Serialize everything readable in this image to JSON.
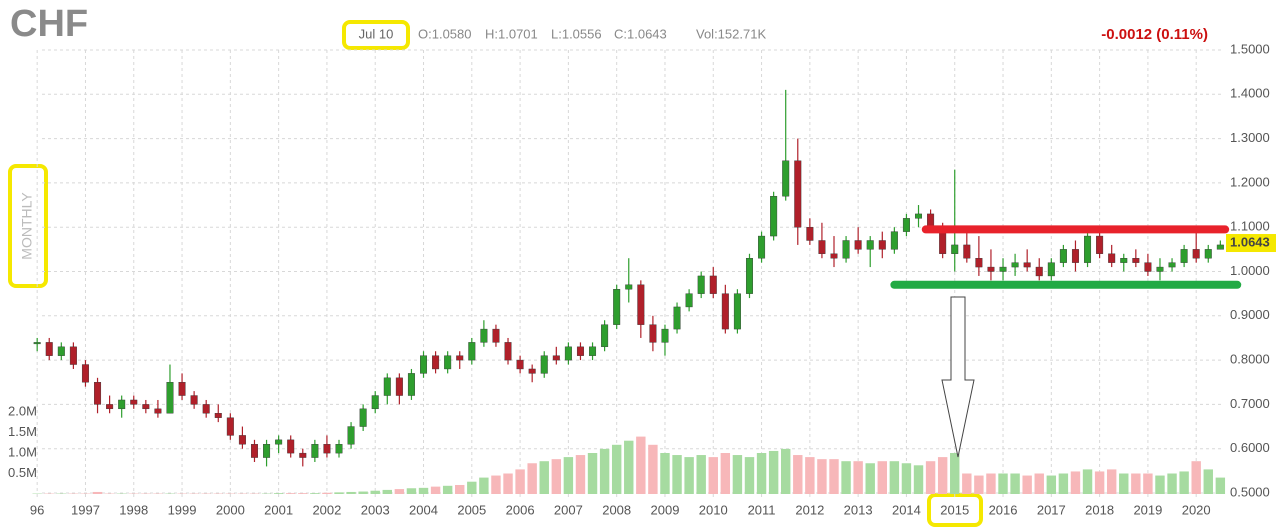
{
  "chart_data": {
    "type": "candlestick",
    "title": "CHF",
    "period": "MONTHLY",
    "header": {
      "date": "Jul 10",
      "open": "O:1.0580",
      "high": "H:1.0701",
      "low": "L:1.0556",
      "close": "C:1.0643",
      "volume": "Vol:152.71K",
      "change": "-0.0012 (0.11%)"
    },
    "last_price": 1.0643,
    "x": [
      1996,
      1996.25,
      1996.5,
      1996.75,
      1997,
      1997.25,
      1997.5,
      1997.75,
      1998,
      1998.25,
      1998.5,
      1998.75,
      1999,
      1999.25,
      1999.5,
      1999.75,
      2000,
      2000.25,
      2000.5,
      2000.75,
      2001,
      2001.25,
      2001.5,
      2001.75,
      2002,
      2002.25,
      2002.5,
      2002.75,
      2003,
      2003.25,
      2003.5,
      2003.75,
      2004,
      2004.25,
      2004.5,
      2004.75,
      2005,
      2005.25,
      2005.5,
      2005.75,
      2006,
      2006.25,
      2006.5,
      2006.75,
      2007,
      2007.25,
      2007.5,
      2007.75,
      2008,
      2008.25,
      2008.5,
      2008.75,
      2009,
      2009.25,
      2009.5,
      2009.75,
      2010,
      2010.25,
      2010.5,
      2010.75,
      2011,
      2011.25,
      2011.5,
      2011.75,
      2012,
      2012.25,
      2012.5,
      2012.75,
      2013,
      2013.25,
      2013.5,
      2013.75,
      2014,
      2014.25,
      2014.5,
      2014.75,
      2015,
      2015.25,
      2015.5,
      2015.75,
      2016,
      2016.25,
      2016.5,
      2016.75,
      2017,
      2017.25,
      2017.5,
      2017.75,
      2018,
      2018.25,
      2018.5,
      2018.75,
      2019,
      2019.25,
      2019.5,
      2019.75,
      2020,
      2020.25,
      2020.5
    ],
    "ohlc": [
      [
        0.84,
        0.85,
        0.82,
        0.84
      ],
      [
        0.84,
        0.85,
        0.8,
        0.81
      ],
      [
        0.81,
        0.84,
        0.8,
        0.83
      ],
      [
        0.83,
        0.84,
        0.78,
        0.79
      ],
      [
        0.79,
        0.8,
        0.74,
        0.75
      ],
      [
        0.75,
        0.76,
        0.68,
        0.7
      ],
      [
        0.7,
        0.72,
        0.68,
        0.69
      ],
      [
        0.69,
        0.72,
        0.67,
        0.71
      ],
      [
        0.71,
        0.72,
        0.69,
        0.7
      ],
      [
        0.7,
        0.71,
        0.68,
        0.69
      ],
      [
        0.69,
        0.71,
        0.67,
        0.68
      ],
      [
        0.68,
        0.79,
        0.68,
        0.75
      ],
      [
        0.75,
        0.77,
        0.71,
        0.72
      ],
      [
        0.72,
        0.73,
        0.69,
        0.7
      ],
      [
        0.7,
        0.71,
        0.67,
        0.68
      ],
      [
        0.68,
        0.7,
        0.66,
        0.67
      ],
      [
        0.67,
        0.68,
        0.62,
        0.63
      ],
      [
        0.63,
        0.65,
        0.6,
        0.61
      ],
      [
        0.61,
        0.62,
        0.57,
        0.58
      ],
      [
        0.58,
        0.62,
        0.56,
        0.61
      ],
      [
        0.61,
        0.63,
        0.59,
        0.62
      ],
      [
        0.62,
        0.63,
        0.58,
        0.59
      ],
      [
        0.59,
        0.6,
        0.56,
        0.58
      ],
      [
        0.58,
        0.62,
        0.57,
        0.61
      ],
      [
        0.61,
        0.63,
        0.58,
        0.59
      ],
      [
        0.59,
        0.62,
        0.58,
        0.61
      ],
      [
        0.61,
        0.66,
        0.6,
        0.65
      ],
      [
        0.65,
        0.7,
        0.64,
        0.69
      ],
      [
        0.69,
        0.73,
        0.68,
        0.72
      ],
      [
        0.72,
        0.77,
        0.7,
        0.76
      ],
      [
        0.76,
        0.77,
        0.7,
        0.72
      ],
      [
        0.72,
        0.78,
        0.71,
        0.77
      ],
      [
        0.77,
        0.82,
        0.76,
        0.81
      ],
      [
        0.81,
        0.82,
        0.77,
        0.78
      ],
      [
        0.78,
        0.82,
        0.77,
        0.81
      ],
      [
        0.81,
        0.82,
        0.78,
        0.8
      ],
      [
        0.8,
        0.85,
        0.79,
        0.84
      ],
      [
        0.84,
        0.89,
        0.83,
        0.87
      ],
      [
        0.87,
        0.88,
        0.83,
        0.84
      ],
      [
        0.84,
        0.85,
        0.79,
        0.8
      ],
      [
        0.8,
        0.81,
        0.77,
        0.78
      ],
      [
        0.78,
        0.79,
        0.75,
        0.77
      ],
      [
        0.77,
        0.82,
        0.76,
        0.81
      ],
      [
        0.81,
        0.83,
        0.79,
        0.8
      ],
      [
        0.8,
        0.84,
        0.79,
        0.83
      ],
      [
        0.83,
        0.84,
        0.8,
        0.81
      ],
      [
        0.81,
        0.84,
        0.8,
        0.83
      ],
      [
        0.83,
        0.89,
        0.82,
        0.88
      ],
      [
        0.88,
        0.97,
        0.87,
        0.96
      ],
      [
        0.96,
        1.03,
        0.93,
        0.97
      ],
      [
        0.97,
        0.98,
        0.85,
        0.88
      ],
      [
        0.88,
        0.9,
        0.82,
        0.84
      ],
      [
        0.84,
        0.88,
        0.81,
        0.87
      ],
      [
        0.87,
        0.93,
        0.86,
        0.92
      ],
      [
        0.92,
        0.96,
        0.91,
        0.95
      ],
      [
        0.95,
        1.0,
        0.94,
        0.99
      ],
      [
        0.99,
        1.01,
        0.94,
        0.95
      ],
      [
        0.95,
        0.97,
        0.86,
        0.87
      ],
      [
        0.87,
        0.96,
        0.86,
        0.95
      ],
      [
        0.95,
        1.04,
        0.94,
        1.03
      ],
      [
        1.03,
        1.09,
        1.02,
        1.08
      ],
      [
        1.08,
        1.18,
        1.07,
        1.17
      ],
      [
        1.17,
        1.41,
        1.16,
        1.25
      ],
      [
        1.25,
        1.3,
        1.06,
        1.1
      ],
      [
        1.1,
        1.12,
        1.06,
        1.07
      ],
      [
        1.07,
        1.11,
        1.03,
        1.04
      ],
      [
        1.04,
        1.08,
        1.01,
        1.03
      ],
      [
        1.03,
        1.08,
        1.02,
        1.07
      ],
      [
        1.07,
        1.1,
        1.04,
        1.05
      ],
      [
        1.05,
        1.08,
        1.01,
        1.07
      ],
      [
        1.07,
        1.09,
        1.03,
        1.05
      ],
      [
        1.05,
        1.1,
        1.04,
        1.09
      ],
      [
        1.09,
        1.13,
        1.08,
        1.12
      ],
      [
        1.12,
        1.15,
        1.1,
        1.13
      ],
      [
        1.13,
        1.14,
        1.09,
        1.1
      ],
      [
        1.1,
        1.11,
        1.03,
        1.04
      ],
      [
        1.04,
        1.23,
        1.0,
        1.06
      ],
      [
        1.06,
        1.09,
        1.02,
        1.03
      ],
      [
        1.03,
        1.08,
        0.99,
        1.01
      ],
      [
        1.01,
        1.05,
        0.98,
        1.0
      ],
      [
        1.0,
        1.03,
        0.98,
        1.01
      ],
      [
        1.01,
        1.04,
        0.99,
        1.02
      ],
      [
        1.02,
        1.05,
        1.0,
        1.01
      ],
      [
        1.01,
        1.03,
        0.98,
        0.99
      ],
      [
        0.99,
        1.03,
        0.98,
        1.02
      ],
      [
        1.02,
        1.06,
        1.01,
        1.05
      ],
      [
        1.05,
        1.07,
        1.0,
        1.02
      ],
      [
        1.02,
        1.09,
        1.01,
        1.08
      ],
      [
        1.08,
        1.09,
        1.03,
        1.04
      ],
      [
        1.04,
        1.06,
        1.01,
        1.02
      ],
      [
        1.02,
        1.04,
        1.0,
        1.03
      ],
      [
        1.03,
        1.05,
        1.01,
        1.02
      ],
      [
        1.02,
        1.04,
        0.99,
        1.0
      ],
      [
        1.0,
        1.03,
        0.98,
        1.01
      ],
      [
        1.01,
        1.03,
        1.0,
        1.02
      ],
      [
        1.02,
        1.06,
        1.01,
        1.05
      ],
      [
        1.05,
        1.09,
        1.02,
        1.03
      ],
      [
        1.03,
        1.06,
        1.02,
        1.05
      ],
      [
        1.05,
        1.07,
        1.05,
        1.06
      ]
    ],
    "volume": [
      0.01,
      0.01,
      0.01,
      0.01,
      0.01,
      0.05,
      0.01,
      0.01,
      0.01,
      0.01,
      0.01,
      0.01,
      0.01,
      0.01,
      0.01,
      0.01,
      0.01,
      0.01,
      0.01,
      0.01,
      0.02,
      0.02,
      0.02,
      0.02,
      0.03,
      0.04,
      0.05,
      0.06,
      0.08,
      0.1,
      0.12,
      0.14,
      0.15,
      0.18,
      0.2,
      0.22,
      0.3,
      0.4,
      0.45,
      0.5,
      0.6,
      0.75,
      0.8,
      0.85,
      0.9,
      0.95,
      1.0,
      1.1,
      1.2,
      1.3,
      1.4,
      1.2,
      1.0,
      0.95,
      0.9,
      0.95,
      0.9,
      1.0,
      0.95,
      0.9,
      1.0,
      1.05,
      1.1,
      0.95,
      0.9,
      0.85,
      0.85,
      0.8,
      0.8,
      0.75,
      0.8,
      0.8,
      0.75,
      0.7,
      0.8,
      0.9,
      1.0,
      0.5,
      0.45,
      0.5,
      0.5,
      0.5,
      0.45,
      0.5,
      0.45,
      0.5,
      0.55,
      0.6,
      0.55,
      0.6,
      0.5,
      0.5,
      0.5,
      0.45,
      0.5,
      0.55,
      0.8,
      0.6,
      0.4
    ],
    "up_color": "#2e9e2e",
    "down_color": "#b0202a",
    "vol_up_color": "#a6dba0",
    "vol_down_color": "#f7b7b9",
    "xlim": [
      1996.1,
      2020.7
    ],
    "xticks": [
      {
        "value": 1996,
        "label": "96"
      },
      1997,
      1998,
      1999,
      2000,
      2001,
      2002,
      2003,
      2004,
      2005,
      2006,
      2007,
      2008,
      2009,
      2010,
      2011,
      2012,
      2013,
      2014,
      2015,
      2016,
      2017,
      2018,
      2019,
      2020
    ],
    "ylim": [
      0.5,
      1.5
    ],
    "yticks": [
      {
        "value": 0.5,
        "label": "0.5000"
      },
      {
        "value": 0.6,
        "label": "0.6000"
      },
      {
        "value": 0.7,
        "label": "0.7000"
      },
      {
        "value": 0.8,
        "label": "0.8000"
      },
      {
        "value": 0.9,
        "label": "0.9000"
      },
      {
        "value": 1.0,
        "label": "1.0000"
      },
      {
        "value": 1.1,
        "label": "1.1000"
      },
      {
        "value": 1.2,
        "label": "1.2000"
      },
      {
        "value": 1.3,
        "label": "1.3000"
      },
      {
        "value": 1.4,
        "label": "1.4000"
      },
      {
        "value": 1.5,
        "label": "1.5000"
      }
    ],
    "vlim": [
      0,
      5
    ],
    "vticks": [
      {
        "value": 0.5,
        "label": "0.5M"
      },
      {
        "value": 1.0,
        "label": "1.0M"
      },
      {
        "value": 1.5,
        "label": "1.5M"
      },
      {
        "value": 2.0,
        "label": "2.0M"
      }
    ],
    "grid": true,
    "levels": [
      {
        "y": 1.095,
        "x": [
          2014.4,
          2020.6
        ],
        "color": "#e8222b"
      },
      {
        "y": 0.97,
        "x": [
          2013.75,
          2020.85
        ],
        "color": "#22aa44"
      }
    ]
  }
}
